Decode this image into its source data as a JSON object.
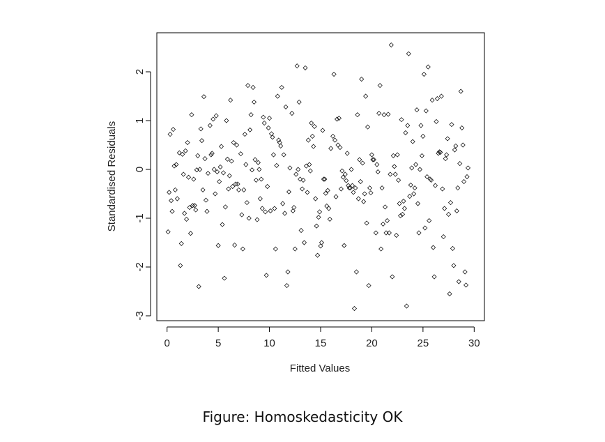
{
  "caption": "Figure: Homoskedasticity OK",
  "chart_data": {
    "type": "scatter",
    "xlabel": "Fitted Values",
    "ylabel": "Standardised Residuals",
    "xlim": [
      -1,
      31
    ],
    "ylim": [
      -3.1,
      2.8
    ],
    "x_ticks": [
      0,
      5,
      10,
      15,
      20,
      25,
      30
    ],
    "y_ticks": [
      -3,
      -2,
      -1,
      0,
      1,
      2
    ],
    "marker": "open-diamond",
    "grid": false,
    "legend": "none",
    "points": [
      [
        0.1,
        -1.28
      ],
      [
        0.2,
        -0.47
      ],
      [
        0.3,
        0.72
      ],
      [
        0.4,
        -0.64
      ],
      [
        0.5,
        -0.86
      ],
      [
        0.6,
        0.82
      ],
      [
        0.7,
        0.07
      ],
      [
        0.8,
        -0.42
      ],
      [
        0.9,
        0.1
      ],
      [
        1.0,
        -0.6
      ],
      [
        1.2,
        0.34
      ],
      [
        1.3,
        -1.97
      ],
      [
        1.4,
        -1.52
      ],
      [
        1.5,
        0.31
      ],
      [
        1.6,
        -0.1
      ],
      [
        1.7,
        -0.9
      ],
      [
        1.8,
        0.38
      ],
      [
        1.9,
        -1.02
      ],
      [
        2.0,
        0.55
      ],
      [
        2.1,
        -0.16
      ],
      [
        2.2,
        -0.78
      ],
      [
        2.3,
        -1.31
      ],
      [
        2.4,
        1.12
      ],
      [
        2.5,
        -0.74
      ],
      [
        2.6,
        -0.2
      ],
      [
        2.7,
        -0.74
      ],
      [
        2.8,
        -0.83
      ],
      [
        2.9,
        -0.01
      ],
      [
        3.0,
        0.28
      ],
      [
        3.1,
        -2.4
      ],
      [
        3.2,
        0.0
      ],
      [
        3.3,
        0.83
      ],
      [
        3.4,
        0.59
      ],
      [
        3.5,
        -0.42
      ],
      [
        3.6,
        1.49
      ],
      [
        3.7,
        0.22
      ],
      [
        3.8,
        -0.63
      ],
      [
        3.9,
        -0.86
      ],
      [
        4.0,
        -0.08
      ],
      [
        4.2,
        0.9
      ],
      [
        4.3,
        0.3
      ],
      [
        4.4,
        0.33
      ],
      [
        4.5,
        1.03
      ],
      [
        4.6,
        0.0
      ],
      [
        4.7,
        -0.5
      ],
      [
        4.8,
        1.1
      ],
      [
        4.9,
        -0.05
      ],
      [
        5.0,
        -1.56
      ],
      [
        5.1,
        -0.25
      ],
      [
        5.2,
        0.05
      ],
      [
        5.3,
        0.47
      ],
      [
        5.4,
        -1.13
      ],
      [
        5.5,
        -0.07
      ],
      [
        5.6,
        -2.23
      ],
      [
        5.7,
        -0.77
      ],
      [
        5.8,
        1.0
      ],
      [
        5.9,
        0.21
      ],
      [
        6.0,
        -0.4
      ],
      [
        6.1,
        -0.13
      ],
      [
        6.2,
        1.42
      ],
      [
        6.3,
        0.17
      ],
      [
        6.4,
        -0.35
      ],
      [
        6.5,
        0.55
      ],
      [
        6.6,
        -1.55
      ],
      [
        6.7,
        -0.3
      ],
      [
        6.8,
        0.5
      ],
      [
        6.9,
        -0.3
      ],
      [
        7.0,
        -0.42
      ],
      [
        7.2,
        0.32
      ],
      [
        7.3,
        -0.93
      ],
      [
        7.4,
        -1.63
      ],
      [
        7.5,
        -0.42
      ],
      [
        7.6,
        0.72
      ],
      [
        7.7,
        0.1
      ],
      [
        7.8,
        -0.68
      ],
      [
        7.9,
        1.72
      ],
      [
        8.0,
        -1.0
      ],
      [
        8.1,
        0.81
      ],
      [
        8.2,
        1.12
      ],
      [
        8.3,
        -0.01
      ],
      [
        8.4,
        1.68
      ],
      [
        8.5,
        1.38
      ],
      [
        8.6,
        0.2
      ],
      [
        8.7,
        -0.22
      ],
      [
        8.8,
        -1.03
      ],
      [
        8.9,
        0.14
      ],
      [
        9.0,
        0.0
      ],
      [
        9.1,
        -0.6
      ],
      [
        9.2,
        -0.2
      ],
      [
        9.3,
        -0.8
      ],
      [
        9.4,
        1.07
      ],
      [
        9.5,
        0.95
      ],
      [
        9.6,
        -0.87
      ],
      [
        9.7,
        -2.17
      ],
      [
        9.8,
        -0.35
      ],
      [
        9.9,
        0.85
      ],
      [
        10.0,
        1.05
      ],
      [
        10.1,
        -0.85
      ],
      [
        10.2,
        0.73
      ],
      [
        10.3,
        0.66
      ],
      [
        10.4,
        0.3
      ],
      [
        10.5,
        -0.8
      ],
      [
        10.6,
        -1.63
      ],
      [
        10.7,
        0.08
      ],
      [
        10.8,
        1.5
      ],
      [
        10.9,
        0.6
      ],
      [
        11.0,
        0.55
      ],
      [
        11.1,
        0.48
      ],
      [
        11.2,
        1.68
      ],
      [
        11.3,
        -0.7
      ],
      [
        11.4,
        0.3
      ],
      [
        11.5,
        -0.9
      ],
      [
        11.6,
        1.28
      ],
      [
        11.7,
        -2.38
      ],
      [
        11.8,
        -2.1
      ],
      [
        11.9,
        -0.46
      ],
      [
        12.0,
        0.03
      ],
      [
        12.2,
        1.15
      ],
      [
        12.3,
        -0.85
      ],
      [
        12.4,
        -0.78
      ],
      [
        12.5,
        -1.63
      ],
      [
        12.6,
        -0.1
      ],
      [
        12.7,
        2.12
      ],
      [
        12.8,
        0.0
      ],
      [
        12.9,
        1.38
      ],
      [
        13.0,
        -0.2
      ],
      [
        13.1,
        -1.25
      ],
      [
        13.2,
        -0.4
      ],
      [
        13.3,
        -0.22
      ],
      [
        13.4,
        -1.5
      ],
      [
        13.5,
        2.08
      ],
      [
        13.6,
        0.07
      ],
      [
        13.7,
        -0.47
      ],
      [
        13.8,
        0.6
      ],
      [
        13.9,
        0.1
      ],
      [
        14.0,
        -0.03
      ],
      [
        14.1,
        0.95
      ],
      [
        14.2,
        0.68
      ],
      [
        14.3,
        0.47
      ],
      [
        14.4,
        0.88
      ],
      [
        14.5,
        -0.6
      ],
      [
        14.6,
        -1.16
      ],
      [
        14.7,
        -1.76
      ],
      [
        14.8,
        -0.98
      ],
      [
        14.9,
        -0.87
      ],
      [
        15.0,
        -1.57
      ],
      [
        15.1,
        -1.5
      ],
      [
        15.2,
        0.8
      ],
      [
        15.3,
        -0.2
      ],
      [
        15.4,
        -0.2
      ],
      [
        15.5,
        -0.49
      ],
      [
        15.6,
        -0.75
      ],
      [
        15.7,
        -0.43
      ],
      [
        15.8,
        -0.8
      ],
      [
        15.9,
        -1.02
      ],
      [
        16.0,
        0.43
      ],
      [
        16.2,
        0.68
      ],
      [
        16.3,
        1.95
      ],
      [
        16.4,
        0.6
      ],
      [
        16.5,
        -0.56
      ],
      [
        16.6,
        1.03
      ],
      [
        16.7,
        0.5
      ],
      [
        16.8,
        1.05
      ],
      [
        16.9,
        0.45
      ],
      [
        17.0,
        -0.4
      ],
      [
        17.1,
        -0.03
      ],
      [
        17.2,
        -0.16
      ],
      [
        17.3,
        -1.56
      ],
      [
        17.4,
        -0.1
      ],
      [
        17.5,
        -0.23
      ],
      [
        17.6,
        0.33
      ],
      [
        17.7,
        -0.33
      ],
      [
        17.8,
        -0.38
      ],
      [
        17.9,
        -0.38
      ],
      [
        18.0,
        0.0
      ],
      [
        18.1,
        -0.33
      ],
      [
        18.2,
        -0.47
      ],
      [
        18.3,
        -2.85
      ],
      [
        18.4,
        -0.38
      ],
      [
        18.5,
        -2.1
      ],
      [
        18.6,
        1.12
      ],
      [
        18.7,
        -0.6
      ],
      [
        18.8,
        0.2
      ],
      [
        18.9,
        -0.25
      ],
      [
        19.0,
        1.85
      ],
      [
        19.1,
        0.13
      ],
      [
        19.2,
        -0.66
      ],
      [
        19.3,
        -0.5
      ],
      [
        19.4,
        1.5
      ],
      [
        19.5,
        -1.1
      ],
      [
        19.6,
        0.87
      ],
      [
        19.7,
        -2.38
      ],
      [
        19.8,
        -0.38
      ],
      [
        19.9,
        -0.48
      ],
      [
        20.0,
        0.3
      ],
      [
        20.1,
        0.2
      ],
      [
        20.2,
        0.2
      ],
      [
        20.4,
        -1.3
      ],
      [
        20.5,
        0.1
      ],
      [
        20.6,
        -0.05
      ],
      [
        20.7,
        1.15
      ],
      [
        20.8,
        1.72
      ],
      [
        20.9,
        -1.63
      ],
      [
        21.0,
        -0.38
      ],
      [
        21.1,
        -1.12
      ],
      [
        21.2,
        1.12
      ],
      [
        21.3,
        -0.77
      ],
      [
        21.4,
        -1.3
      ],
      [
        21.5,
        -1.05
      ],
      [
        21.6,
        1.13
      ],
      [
        21.7,
        -1.3
      ],
      [
        21.8,
        -0.1
      ],
      [
        21.9,
        2.55
      ],
      [
        22.0,
        -2.2
      ],
      [
        22.1,
        0.28
      ],
      [
        22.2,
        0.06
      ],
      [
        22.3,
        -0.1
      ],
      [
        22.4,
        -1.35
      ],
      [
        22.5,
        0.3
      ],
      [
        22.6,
        -0.22
      ],
      [
        22.7,
        -0.7
      ],
      [
        22.8,
        -0.95
      ],
      [
        22.9,
        1.02
      ],
      [
        23.0,
        -0.92
      ],
      [
        23.1,
        -0.65
      ],
      [
        23.2,
        -0.8
      ],
      [
        23.3,
        0.75
      ],
      [
        23.4,
        -2.8
      ],
      [
        23.5,
        0.9
      ],
      [
        23.6,
        2.37
      ],
      [
        23.7,
        -0.55
      ],
      [
        23.8,
        -0.32
      ],
      [
        23.9,
        0.03
      ],
      [
        24.0,
        0.57
      ],
      [
        24.1,
        -0.5
      ],
      [
        24.2,
        -0.38
      ],
      [
        24.3,
        0.1
      ],
      [
        24.4,
        1.22
      ],
      [
        24.5,
        -0.7
      ],
      [
        24.6,
        -1.3
      ],
      [
        24.7,
        0.0
      ],
      [
        24.8,
        0.9
      ],
      [
        24.9,
        0.28
      ],
      [
        25.0,
        0.68
      ],
      [
        25.1,
        1.95
      ],
      [
        25.2,
        -1.2
      ],
      [
        25.3,
        1.2
      ],
      [
        25.4,
        -0.15
      ],
      [
        25.5,
        2.1
      ],
      [
        25.6,
        -1.05
      ],
      [
        25.7,
        -0.2
      ],
      [
        25.8,
        -0.22
      ],
      [
        25.9,
        1.42
      ],
      [
        26.0,
        -1.6
      ],
      [
        26.1,
        -2.2
      ],
      [
        26.2,
        -0.33
      ],
      [
        26.3,
        0.98
      ],
      [
        26.4,
        1.45
      ],
      [
        26.5,
        0.33
      ],
      [
        26.6,
        0.36
      ],
      [
        26.7,
        0.35
      ],
      [
        26.8,
        1.5
      ],
      [
        26.9,
        -0.4
      ],
      [
        27.0,
        -1.38
      ],
      [
        27.1,
        -0.8
      ],
      [
        27.2,
        0.22
      ],
      [
        27.3,
        0.3
      ],
      [
        27.4,
        0.63
      ],
      [
        27.5,
        -0.92
      ],
      [
        27.6,
        -2.55
      ],
      [
        27.7,
        -0.68
      ],
      [
        27.8,
        0.92
      ],
      [
        27.9,
        -1.62
      ],
      [
        28.0,
        -1.97
      ],
      [
        28.1,
        0.4
      ],
      [
        28.2,
        0.48
      ],
      [
        28.3,
        -0.85
      ],
      [
        28.4,
        -0.38
      ],
      [
        28.5,
        -2.3
      ],
      [
        28.6,
        0.12
      ],
      [
        28.7,
        1.6
      ],
      [
        28.8,
        0.85
      ],
      [
        28.9,
        0.5
      ],
      [
        29.0,
        -0.25
      ],
      [
        29.1,
        -2.1
      ],
      [
        29.2,
        -2.37
      ],
      [
        29.3,
        -0.15
      ],
      [
        29.4,
        0.03
      ]
    ]
  }
}
